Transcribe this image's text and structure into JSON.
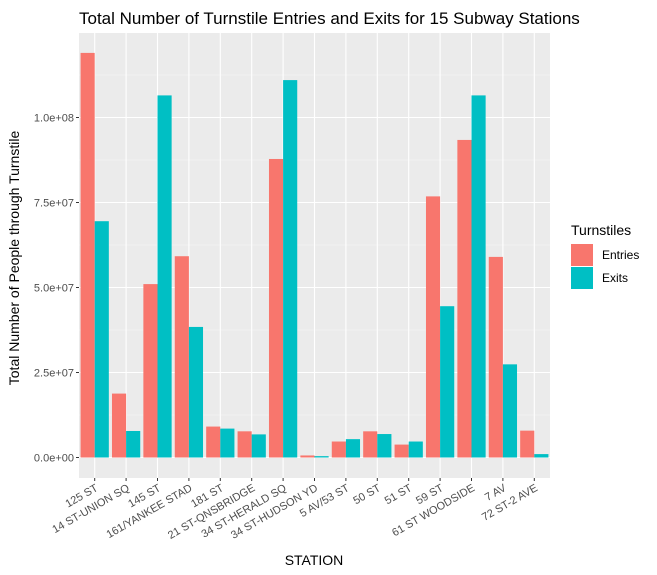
{
  "chart_data": {
    "type": "bar",
    "title": "Total Number of Turnstile Entries and Exits for 15 Subway Stations",
    "xlabel": "STATION",
    "ylabel": "Total Number of People through Turnstile",
    "ylim": [
      0,
      125000000
    ],
    "yticks": [
      {
        "value": 0,
        "label": "0.0e+00"
      },
      {
        "value": 25000000,
        "label": "2.5e+07"
      },
      {
        "value": 50000000,
        "label": "5.0e+07"
      },
      {
        "value": 75000000,
        "label": "7.5e+07"
      },
      {
        "value": 100000000,
        "label": "1.0e+08"
      }
    ],
    "categories": [
      "125 ST",
      "14 ST-UNION SQ",
      "145 ST",
      "161/YANKEE STAD",
      "181 ST",
      "21 ST-QNSBRIDGE",
      "34 ST-HERALD SQ",
      "34 ST-HUDSON YD",
      "5 AV/53 ST",
      "50 ST",
      "51 ST",
      "59 ST",
      "61 ST WOODSIDE",
      "7 AV",
      "72 ST-2 AVE"
    ],
    "series": [
      {
        "name": "Entries",
        "color": "#F8766D",
        "values": [
          119000000,
          18800000,
          51000000,
          59200000,
          9100000,
          7700000,
          87800000,
          600000,
          4700000,
          7700000,
          3800000,
          76800000,
          93400000,
          59000000,
          7900000
        ]
      },
      {
        "name": "Exits",
        "color": "#00BFC4",
        "values": [
          69500000,
          7800000,
          106500000,
          38400000,
          8500000,
          6800000,
          111000000,
          400000,
          5400000,
          6900000,
          4700000,
          44500000,
          106500000,
          27400000,
          1000000
        ]
      }
    ],
    "legend": {
      "title": "Turnstiles",
      "position": "right"
    },
    "grid": true
  }
}
